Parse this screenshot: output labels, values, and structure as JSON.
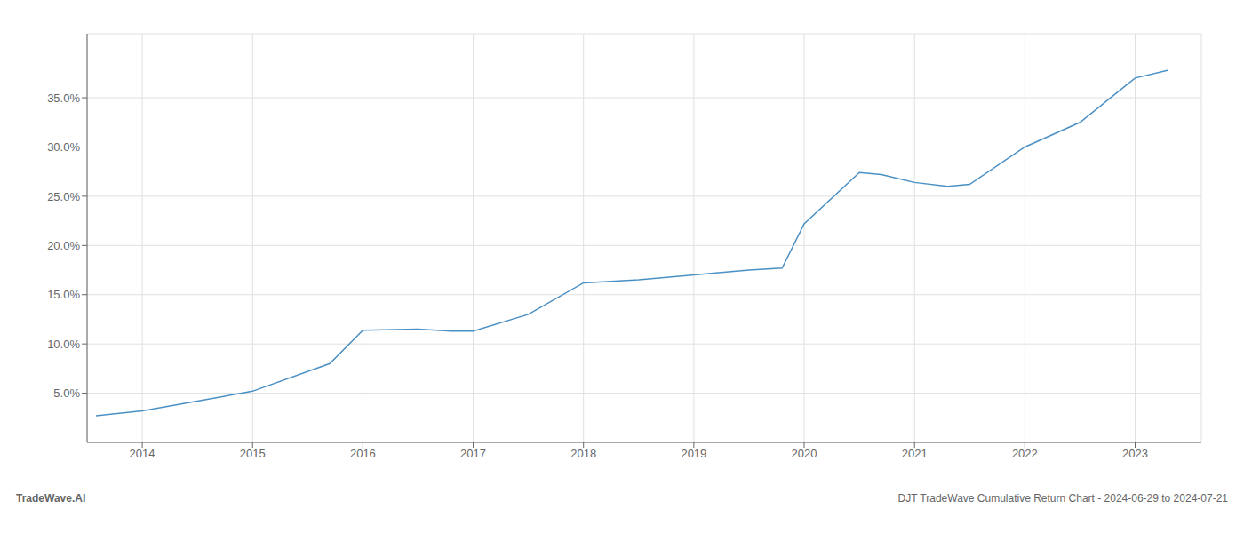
{
  "chart_data": {
    "type": "line",
    "x": [
      2013.58,
      2014.0,
      2014.5,
      2015.0,
      2015.7,
      2016.0,
      2016.5,
      2016.8,
      2017.0,
      2017.5,
      2018.0,
      2018.5,
      2018.8,
      2019.0,
      2019.2,
      2019.5,
      2019.8,
      2020.0,
      2020.5,
      2020.7,
      2021.0,
      2021.3,
      2021.5,
      2022.0,
      2022.5,
      2023.0,
      2023.3
    ],
    "values": [
      0.027,
      0.032,
      0.042,
      0.052,
      0.08,
      0.114,
      0.115,
      0.113,
      0.113,
      0.13,
      0.162,
      0.165,
      0.168,
      0.17,
      0.172,
      0.175,
      0.177,
      0.222,
      0.274,
      0.272,
      0.264,
      0.26,
      0.262,
      0.3,
      0.325,
      0.37,
      0.378
    ],
    "color": "#4a90c4",
    "xlim": [
      2013.5,
      2023.6
    ],
    "ylim": [
      0.0,
      0.415
    ],
    "xticks": [
      2014,
      2015,
      2016,
      2017,
      2018,
      2019,
      2020,
      2021,
      2022,
      2023
    ],
    "yticks": [
      {
        "value": 0.05,
        "label": "5.0%"
      },
      {
        "value": 0.1,
        "label": "10.0%"
      },
      {
        "value": 0.15,
        "label": "15.0%"
      },
      {
        "value": 0.2,
        "label": "20.0%"
      },
      {
        "value": 0.25,
        "label": "25.0%"
      },
      {
        "value": 0.3,
        "label": "30.0%"
      },
      {
        "value": 0.35,
        "label": "35.0%"
      }
    ],
    "grid": true,
    "annotations": [
      "TradeWave.AI",
      "DJT TradeWave Cumulative Return Chart - 2024-06-29 to 2024-07-21"
    ]
  }
}
